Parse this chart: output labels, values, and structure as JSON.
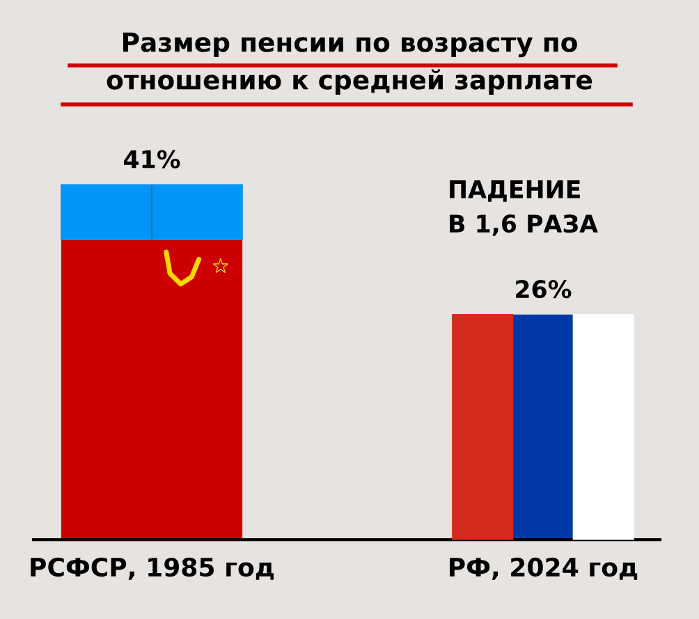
{
  "chart_data": {
    "type": "bar",
    "title": "Размер пенсии по возрасту по\nотношению к средней зарплате",
    "categories": [
      "РСФСР, 1985 год",
      "РФ, 2024 год"
    ],
    "values": [
      41,
      26
    ],
    "colors": [
      "#cc0000",
      "#0039a6"
    ],
    "data_labels": true,
    "value_labels": [
      "41%",
      "26%"
    ],
    "annotations": [
      "ПАДЕНИЕ\nВ 1,6 РАЗА"
    ]
  }
}
